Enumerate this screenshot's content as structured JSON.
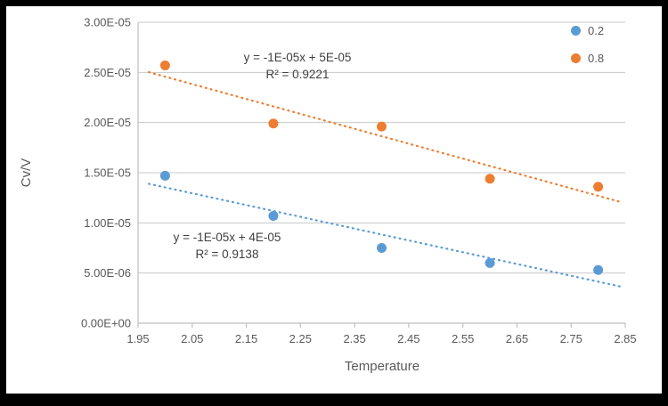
{
  "chart_data": {
    "type": "scatter",
    "title": "",
    "xlabel": "Temperature",
    "ylabel": "Cv/V",
    "xlim": [
      1.95,
      2.85
    ],
    "ylim": [
      0,
      3e-05
    ],
    "grid": "horizontal",
    "legend_position": "top-right",
    "colors": {
      "grid": "#c8c8c8",
      "axis": "#bfbfbf",
      "tick_text": "#595959",
      "annotation_text": "#404040"
    },
    "x_ticks": [
      {
        "value": 1.95,
        "label": "1.95"
      },
      {
        "value": 2.05,
        "label": "2.05"
      },
      {
        "value": 2.15,
        "label": "2.15"
      },
      {
        "value": 2.25,
        "label": "2.25"
      },
      {
        "value": 2.35,
        "label": "2.35"
      },
      {
        "value": 2.45,
        "label": "2.45"
      },
      {
        "value": 2.55,
        "label": "2.55"
      },
      {
        "value": 2.65,
        "label": "2.65"
      },
      {
        "value": 2.75,
        "label": "2.75"
      },
      {
        "value": 2.85,
        "label": "2.85"
      }
    ],
    "y_ticks": [
      {
        "value": 0,
        "label": "0.00E+00"
      },
      {
        "value": 5e-06,
        "label": "5.00E-06"
      },
      {
        "value": 1e-05,
        "label": "1.00E-05"
      },
      {
        "value": 1.5e-05,
        "label": "1.50E-05"
      },
      {
        "value": 2e-05,
        "label": "2.00E-05"
      },
      {
        "value": 2.5e-05,
        "label": "2.50E-05"
      },
      {
        "value": 3e-05,
        "label": "3.00E-05"
      }
    ],
    "series": [
      {
        "name": "0.2",
        "color": "#5B9BD5",
        "x": [
          2.0,
          2.2,
          2.4,
          2.6,
          2.8
        ],
        "y": [
          1.47e-05,
          1.07e-05,
          7.5e-06,
          6e-06,
          5.3e-06
        ],
        "trendline": {
          "style": "dotted",
          "slope": -1.175e-05,
          "intercept": 3.704e-05,
          "x_range": [
            1.97,
            2.84
          ],
          "equation": "y = -1E-05x + 4E-05",
          "r2": "R² = 0.9138"
        }
      },
      {
        "name": "0.8",
        "color": "#ED7D31",
        "x": [
          2.0,
          2.2,
          2.4,
          2.6,
          2.8
        ],
        "y": [
          2.57e-05,
          1.99e-05,
          1.96e-05,
          1.44e-05,
          1.36e-05
        ],
        "trendline": {
          "style": "dotted",
          "slope": -1.485e-05,
          "intercept": 5.428e-05,
          "x_range": [
            1.97,
            2.84
          ],
          "equation": "y = -1E-05x + 5E-05",
          "r2": "R² = 0.9221"
        }
      }
    ]
  }
}
